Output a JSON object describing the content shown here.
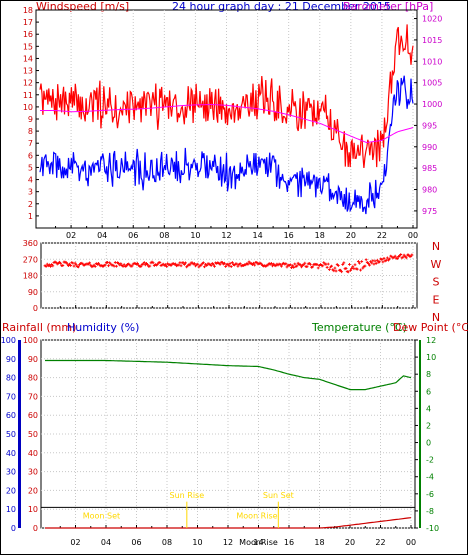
{
  "header": {
    "windspeed_label": "Windspeed [m/s]",
    "title": "24 hour graph day : 21 December 2015",
    "barometer_label": "Barometer [hPa]"
  },
  "labels": {
    "rainfall": "Rainfall (mm)",
    "humidity": "Humidity (%)",
    "temperature": "Temperature (°C)",
    "dew_point": "Dew Point (°C)"
  },
  "colors": {
    "windspeed": "#ff0000",
    "wind_avg": "#0000ff",
    "barometer": "#ff00ff",
    "temperature": "#008000",
    "humidity": "#0000c0",
    "rain": "#cc0000",
    "annotation": "#ffd800"
  },
  "chart_data": [
    {
      "type": "line",
      "title": "24 hour graph day : 21 December 2015",
      "x_ticks": [
        "02",
        "04",
        "06",
        "08",
        "10",
        "12",
        "14",
        "16",
        "18",
        "20",
        "22",
        "00"
      ],
      "y_left_label": "Windspeed [m/s]",
      "y_left_ticks": [
        "1",
        "2",
        "3",
        "4",
        "5",
        "6",
        "7",
        "8",
        "9",
        "10",
        "11",
        "12",
        "13",
        "14",
        "15",
        "16",
        "17",
        "18"
      ],
      "y_left_range": [
        0,
        18
      ],
      "y_right_label": "Barometer [hPa]",
      "y_right_ticks": [
        "975",
        "980",
        "985",
        "990",
        "995",
        "1000",
        "1005",
        "1010",
        "1015",
        "1020"
      ],
      "y_right_range": [
        971,
        1022
      ],
      "series": [
        {
          "name": "Windspeed [m/s]",
          "axis": "left",
          "x": [
            0,
            1,
            2,
            3,
            4,
            5,
            6,
            7,
            8,
            9,
            10,
            11,
            12,
            13,
            14,
            15,
            16,
            17,
            18,
            19,
            20,
            21,
            22,
            23,
            24
          ],
          "values": [
            10.5,
            10.5,
            10.2,
            10.0,
            10.3,
            10.0,
            10.0,
            10.2,
            10.4,
            10.0,
            10.3,
            10.2,
            9.8,
            10.3,
            10.6,
            10.4,
            9.5,
            9.8,
            10.0,
            8.0,
            6.5,
            6.5,
            7.0,
            16.0,
            14.5
          ]
        },
        {
          "name": "Wind avg",
          "axis": "left",
          "x": [
            0,
            1,
            2,
            3,
            4,
            5,
            6,
            7,
            8,
            9,
            10,
            11,
            12,
            13,
            14,
            15,
            16,
            17,
            18,
            19,
            20,
            21,
            22,
            23,
            24
          ],
          "values": [
            5.5,
            5.0,
            5.0,
            4.8,
            5.3,
            5.0,
            4.9,
            4.8,
            5.0,
            5.0,
            5.2,
            5.0,
            4.6,
            5.0,
            5.5,
            5.3,
            3.5,
            4.0,
            3.8,
            3.0,
            2.0,
            2.5,
            3.0,
            11.5,
            11.0
          ]
        },
        {
          "name": "Barometer [hPa]",
          "axis": "right",
          "x": [
            0,
            1,
            2,
            3,
            4,
            5,
            6,
            7,
            8,
            9,
            10,
            11,
            12,
            13,
            14,
            15,
            16,
            17,
            18,
            19,
            20,
            21,
            22,
            23,
            24
          ],
          "values": [
            998.5,
            998.5,
            998.2,
            998.3,
            998.5,
            998.7,
            998.8,
            999.0,
            999.3,
            999.6,
            999.8,
            999.9,
            999.7,
            999.3,
            998.9,
            998.3,
            997.5,
            996.5,
            995.5,
            994.0,
            992.5,
            991.0,
            991.5,
            993.5,
            994.5
          ]
        }
      ]
    },
    {
      "type": "scatter",
      "title": "",
      "x_ticks": [
        "02",
        "04",
        "06",
        "08",
        "10",
        "12",
        "14",
        "16",
        "18",
        "20",
        "22",
        "00"
      ],
      "y_ticks": [
        "0",
        "90",
        "180",
        "270",
        "360"
      ],
      "y_range": [
        0,
        360
      ],
      "y_right_labels": [
        "N",
        "W",
        "S",
        "E",
        "N"
      ],
      "series": [
        {
          "name": "Wind direction",
          "x": [
            0,
            1,
            2,
            3,
            4,
            5,
            6,
            7,
            8,
            9,
            10,
            11,
            12,
            13,
            14,
            15,
            16,
            17,
            18,
            19,
            20,
            21,
            22,
            23,
            24
          ],
          "values": [
            240,
            245,
            240,
            238,
            242,
            240,
            238,
            243,
            242,
            240,
            238,
            242,
            240,
            245,
            242,
            238,
            235,
            238,
            230,
            225,
            222,
            245,
            265,
            285,
            282
          ]
        }
      ]
    },
    {
      "type": "line",
      "title": "",
      "x_ticks": [
        "02",
        "04",
        "06",
        "08",
        "10",
        "12",
        "14",
        "16",
        "18",
        "20",
        "22",
        "00"
      ],
      "y_left_label": "Rainfall (mm)",
      "y_left_ticks": [
        "0",
        "10",
        "20",
        "30",
        "40",
        "50",
        "60",
        "70",
        "80",
        "90",
        "100"
      ],
      "y_left_range": [
        0,
        100
      ],
      "y_humidity_ticks": [
        "0",
        "10",
        "20",
        "30",
        "40",
        "50",
        "60",
        "70",
        "80",
        "90",
        "100"
      ],
      "y_right_label": "Temperature (°C)",
      "y_right_label_2": "Dew Point (°C)",
      "y_right_ticks": [
        "-10",
        "-8",
        "-6",
        "-4",
        "-2",
        "0",
        "2",
        "4",
        "6",
        "8",
        "10",
        "12"
      ],
      "y_right_range": [
        -10,
        12
      ],
      "series": [
        {
          "name": "Temperature (°C)",
          "axis": "right",
          "x": [
            0,
            2,
            4,
            6,
            8,
            10,
            12,
            14,
            15,
            16,
            17,
            18,
            19,
            20,
            21,
            22,
            23,
            23.5,
            24
          ],
          "values": [
            9.6,
            9.6,
            9.6,
            9.5,
            9.4,
            9.2,
            9.0,
            8.9,
            8.5,
            8.0,
            7.6,
            7.4,
            6.8,
            6.2,
            6.2,
            6.6,
            7.0,
            7.8,
            7.6
          ]
        },
        {
          "name": "Rainfall (mm)",
          "axis": "left",
          "x": [
            0,
            18,
            19,
            20,
            21,
            22,
            23,
            24
          ],
          "values": [
            0,
            0,
            0.5,
            1.5,
            2.5,
            3.5,
            4.5,
            5.5
          ]
        }
      ],
      "reference_line": {
        "name": "Humidity (%)",
        "value": 11
      },
      "annotations": [
        {
          "text": "Moon Set",
          "x": 3.7
        },
        {
          "text": "Sun Rise",
          "x": 9.3
        },
        {
          "text": "Sun Set",
          "x": 15.3
        },
        {
          "text": "Moon Rise",
          "x": 13.9
        },
        {
          "text": "MoonRise",
          "x": 14.0
        }
      ]
    }
  ]
}
